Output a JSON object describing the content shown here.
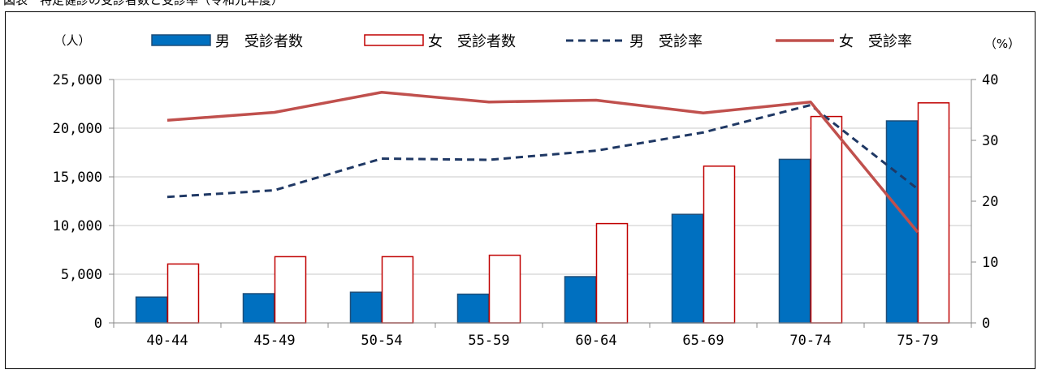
{
  "page": {
    "top_text": "図表　特定健診の受診者数と受診率（令和元年度）"
  },
  "chart_data": {
    "type": "bar",
    "categories": [
      "40-44",
      "45-49",
      "50-54",
      "55-59",
      "60-64",
      "65-69",
      "70-74",
      "75-79"
    ],
    "series": [
      {
        "name": "男　受診者数",
        "kind": "bar",
        "axis": "left",
        "color": "#0070C0",
        "values": [
          2650,
          3000,
          3150,
          2950,
          4750,
          11150,
          16800,
          20750
        ]
      },
      {
        "name": "女　受診者数",
        "kind": "bar",
        "axis": "left",
        "color": "#C00000",
        "values": [
          6050,
          6800,
          6800,
          6950,
          10200,
          16100,
          21200,
          22600
        ]
      },
      {
        "name": "男　受診率",
        "kind": "line",
        "axis": "right",
        "color": "#1F3864",
        "dashed": true,
        "values": [
          20.7,
          21.8,
          27.0,
          26.8,
          28.3,
          31.3,
          35.8,
          22.0
        ]
      },
      {
        "name": "女　受診率",
        "kind": "line",
        "axis": "right",
        "color": "#C0504D",
        "dashed": false,
        "values": [
          33.3,
          34.6,
          37.9,
          36.3,
          36.6,
          34.5,
          36.3,
          14.9
        ]
      }
    ],
    "y_left": {
      "unit_label": "（人）",
      "ylim": [
        0,
        25000
      ],
      "ticks": [
        "0",
        "5,000",
        "10,000",
        "15,000",
        "20,000",
        "25,000"
      ]
    },
    "y_right": {
      "unit_label": "（%）",
      "ylim": [
        0,
        40
      ],
      "ticks": [
        "0",
        "10",
        "20",
        "30",
        "40"
      ]
    },
    "grid": "horizontal",
    "legend_position": "top"
  }
}
